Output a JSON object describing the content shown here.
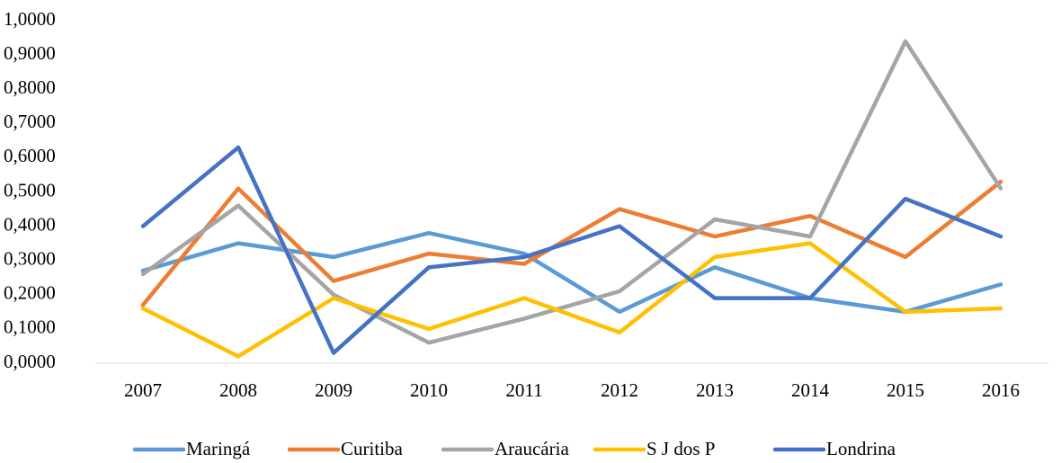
{
  "chart_data": {
    "type": "line",
    "categories": [
      "2007",
      "2008",
      "2009",
      "2010",
      "2011",
      "2012",
      "2013",
      "2014",
      "2015",
      "2016"
    ],
    "series": [
      {
        "name": "Maringá",
        "color": "#5b9bd5",
        "values": [
          0.27,
          0.35,
          0.31,
          0.38,
          0.32,
          0.15,
          0.28,
          0.19,
          0.15,
          0.23
        ]
      },
      {
        "name": "Curitiba",
        "color": "#ed7d31",
        "values": [
          0.17,
          0.51,
          0.24,
          0.32,
          0.29,
          0.45,
          0.37,
          0.43,
          0.31,
          0.53
        ]
      },
      {
        "name": "Araucária",
        "color": "#a5a5a5",
        "values": [
          0.26,
          0.46,
          0.2,
          0.06,
          0.13,
          0.21,
          0.42,
          0.37,
          0.94,
          0.51
        ]
      },
      {
        "name": "S J dos P",
        "color": "#ffc000",
        "values": [
          0.16,
          0.02,
          0.19,
          0.1,
          0.19,
          0.09,
          0.31,
          0.35,
          0.15,
          0.16
        ]
      },
      {
        "name": "Londrina",
        "color": "#4472c4",
        "values": [
          0.4,
          0.63,
          0.03,
          0.28,
          0.31,
          0.4,
          0.19,
          0.19,
          0.48,
          0.37
        ]
      }
    ],
    "ylim": [
      0,
      1
    ],
    "yticks": [
      {
        "value": 0,
        "label": "0,0000"
      },
      {
        "value": 0.1,
        "label": "0,1000"
      },
      {
        "value": 0.2,
        "label": "0,2000"
      },
      {
        "value": 0.3,
        "label": "0,3000"
      },
      {
        "value": 0.4,
        "label": "0,4000"
      },
      {
        "value": 0.5,
        "label": "0,5000"
      },
      {
        "value": 0.6,
        "label": "0,6000"
      },
      {
        "value": 0.7,
        "label": "0,7000"
      },
      {
        "value": 0.8,
        "label": "0,8000"
      },
      {
        "value": 0.9,
        "label": "0,9000"
      },
      {
        "value": 1,
        "label": "1,0000"
      }
    ],
    "grid": false,
    "legend": "bottom"
  }
}
